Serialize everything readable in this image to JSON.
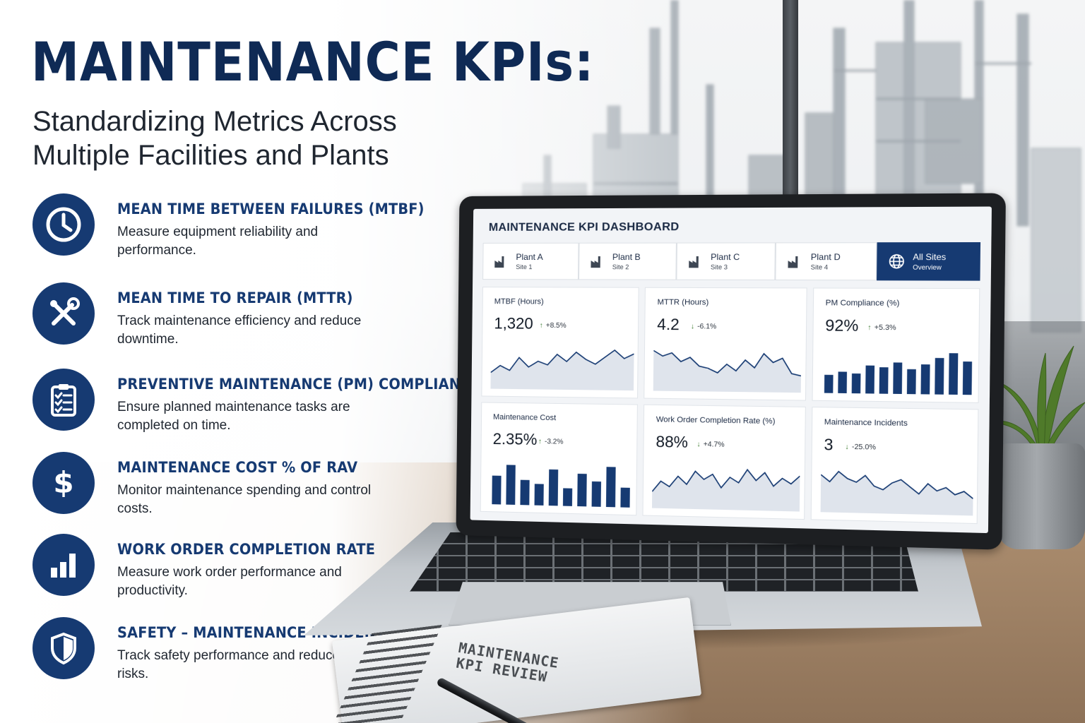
{
  "headline": {
    "title": "MAINTENANCE KPIs:",
    "subtitle_line1": "Standardizing Metrics Across",
    "subtitle_line2": "Multiple Facilities and Plants"
  },
  "kpis": [
    {
      "icon": "clock-icon",
      "title": "MEAN TIME BETWEEN FAILURES (MTBF)",
      "desc": "Measure equipment reliability and performance."
    },
    {
      "icon": "tools-icon",
      "title": "MEAN TIME TO REPAIR (MTTR)",
      "desc": "Track maintenance efficiency and reduce downtime."
    },
    {
      "icon": "clipboard-checklist-icon",
      "title": "PREVENTIVE MAINTENANCE (PM) COMPLIANCE",
      "desc": "Ensure planned maintenance tasks are completed on time."
    },
    {
      "icon": "dollar-icon",
      "title": "MAINTENANCE COST % OF RAV",
      "desc": "Monitor maintenance spending and control costs."
    },
    {
      "icon": "bar-chart-icon",
      "title": "WORK ORDER COMPLETION RATE",
      "desc": "Measure work order performance and productivity."
    },
    {
      "icon": "shield-icon",
      "title": "SAFETY – MAINTENANCE INCIDENTS",
      "desc": "Track safety performance and reduce risks."
    }
  ],
  "dashboard": {
    "title": "MAINTENANCE KPI DASHBOARD",
    "tabs": [
      {
        "name": "Plant A",
        "sub": "Site 1",
        "icon": "factory-icon",
        "active": false
      },
      {
        "name": "Plant B",
        "sub": "Site 2",
        "icon": "factory-icon",
        "active": false
      },
      {
        "name": "Plant C",
        "sub": "Site 3",
        "icon": "factory-icon",
        "active": false
      },
      {
        "name": "Plant D",
        "sub": "Site 4",
        "icon": "factory-icon",
        "active": false
      },
      {
        "name": "All Sites",
        "sub": "Overview",
        "icon": "globe-icon",
        "active": true
      }
    ],
    "accent": "#163a72",
    "up_arrow_color": "#3b7a2e",
    "cards": [
      {
        "label": "MTBF (Hours)",
        "value": "1,320",
        "delta": "+8.5%",
        "direction": "up",
        "chart": "line",
        "series": [
          42,
          48,
          44,
          55,
          47,
          52,
          49,
          58,
          52,
          60,
          54,
          50,
          56,
          62,
          55,
          59
        ]
      },
      {
        "label": "MTTR (Hours)",
        "value": "4.2",
        "delta": "-6.1%",
        "direction": "down",
        "chart": "line",
        "series": [
          60,
          55,
          58,
          50,
          54,
          46,
          44,
          40,
          48,
          42,
          52,
          45,
          58,
          50,
          54,
          40,
          38
        ]
      },
      {
        "label": "PM Compliance (%)",
        "value": "92%",
        "delta": "+5.3%",
        "direction": "up",
        "chart": "bar",
        "series": [
          78,
          80,
          79,
          84,
          83,
          86,
          82,
          85,
          89,
          92,
          87
        ]
      },
      {
        "label": "Maintenance Cost",
        "value": "2.35%",
        "delta": "-3.2%",
        "direction": "up",
        "chart": "bar",
        "series": [
          2.6,
          2.9,
          2.5,
          2.4,
          2.8,
          2.3,
          2.7,
          2.5,
          2.9,
          2.35
        ]
      },
      {
        "label": "Work Order Completion Rate (%)",
        "value": "88%",
        "delta": "+4.7%",
        "direction": "down",
        "chart": "line",
        "series": [
          80,
          84,
          82,
          86,
          83,
          88,
          85,
          87,
          82,
          86,
          84,
          89,
          85,
          88,
          83,
          86,
          84,
          87
        ]
      },
      {
        "label": "Maintenance Incidents",
        "value": "3",
        "delta": "-25.0%",
        "direction": "down",
        "chart": "line",
        "series": [
          9,
          7,
          10,
          8,
          7,
          9,
          6,
          5,
          7,
          8,
          6,
          4,
          7,
          5,
          6,
          4,
          5,
          3
        ]
      }
    ]
  },
  "notebook": {
    "line1": "MAINTENANCE",
    "line2": "KPI REVIEW"
  }
}
